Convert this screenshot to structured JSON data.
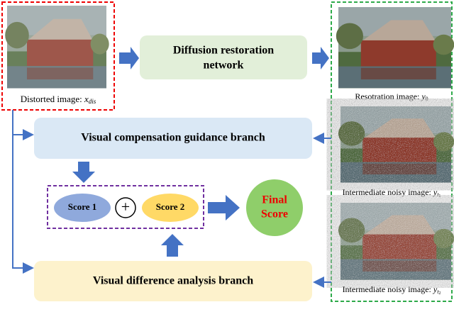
{
  "distorted_image": {
    "label": "Distorted image:",
    "symbol": "x",
    "subscript": "dis"
  },
  "restoration_network": {
    "line1": "Diffusion restoration",
    "line2": "network"
  },
  "restored_image": {
    "label": "Resotration image:",
    "symbol": "y",
    "subscript": "0"
  },
  "noisy_image_1": {
    "label": "Intermediate noisy image:",
    "symbol": "y",
    "subscript": "t",
    "subsubscript": "1"
  },
  "noisy_image_2": {
    "label": "Intermediate noisy image:",
    "symbol": "y",
    "subscript": "t",
    "subsubscript": "2"
  },
  "compensation_branch": {
    "label": "Visual compensation guidance branch"
  },
  "difference_branch": {
    "label": "Visual difference analysis branch"
  },
  "score_1": {
    "label": "Score 1"
  },
  "plus": {
    "label": "+"
  },
  "score_2": {
    "label": "Score 2"
  },
  "final_score": {
    "line1": "Final",
    "line2": "Score"
  }
}
